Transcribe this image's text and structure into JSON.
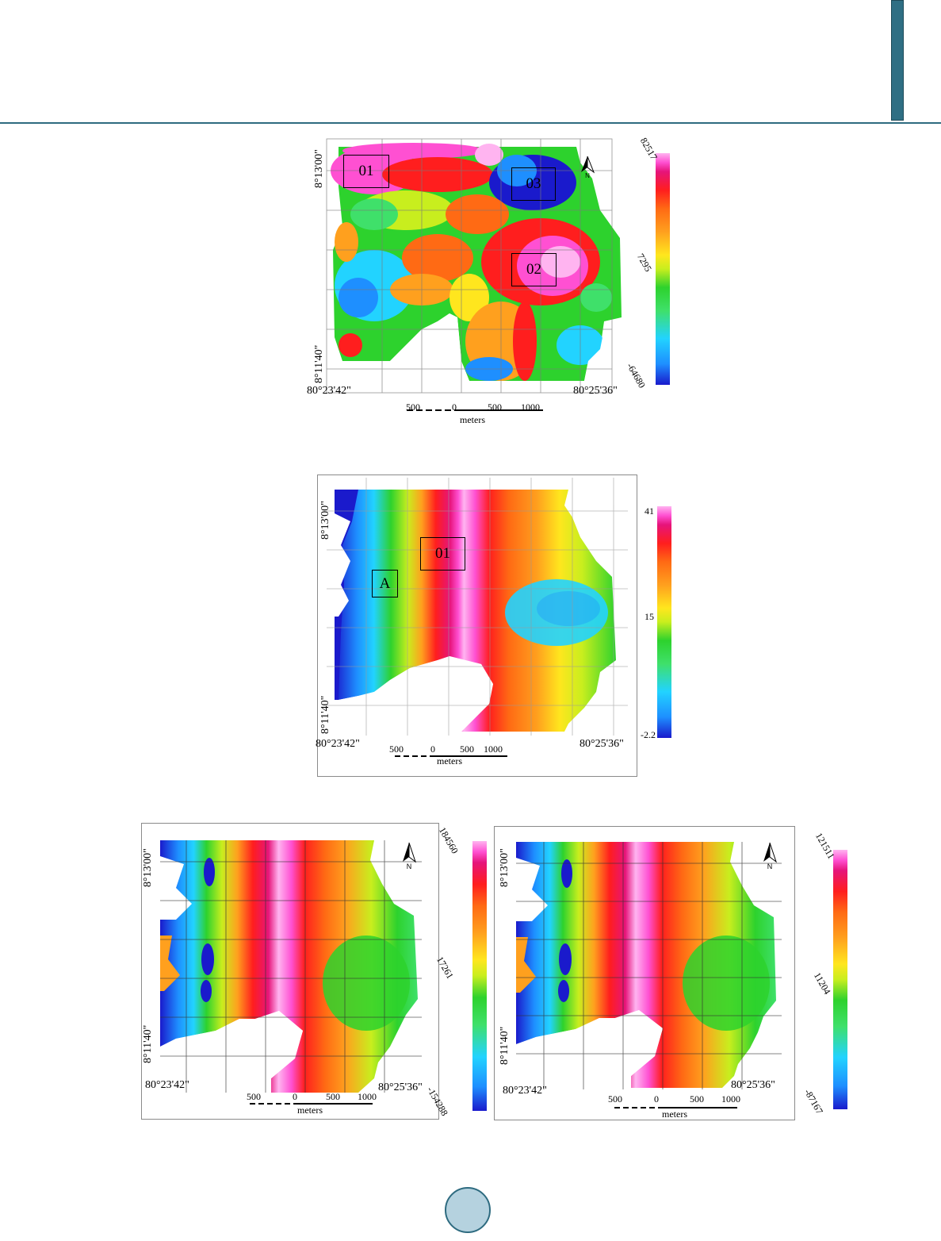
{
  "header": {
    "accent_color": "#2e6b80"
  },
  "maps": [
    {
      "id": "map1",
      "coords": {
        "lat_top": "8°13'00\"",
        "lat_bottom": "8°11'40\"",
        "lon_left": "80°23'42\"",
        "lon_right": "80°25'36\""
      },
      "scale": {
        "ticks": [
          "500",
          "0",
          "500",
          "1000"
        ],
        "unit": "meters"
      },
      "colorbar": {
        "max": "82517",
        "mid": "7295",
        "min": "-64680"
      },
      "boxes": [
        "01",
        "03",
        "02"
      ],
      "north": "N"
    },
    {
      "id": "map2",
      "coords": {
        "lat_top": "8°13'00\"",
        "lat_bottom": "8°11'40\"",
        "lon_left": "80°23'42\"",
        "lon_right": "80°25'36\""
      },
      "scale": {
        "ticks": [
          "500",
          "0",
          "500",
          "1000"
        ],
        "unit": "meters"
      },
      "colorbar": {
        "max": "41",
        "mid": "15",
        "min": "-2.2"
      },
      "boxes": [
        "01",
        "A"
      ]
    },
    {
      "id": "map3",
      "coords": {
        "lat_top": "8°13'00\"",
        "lat_bottom": "8°11'40\"",
        "lon_left": "80°23'42\"",
        "lon_right": "80°25'36\""
      },
      "scale": {
        "ticks": [
          "500",
          "0",
          "500",
          "1000"
        ],
        "unit": "meters"
      },
      "colorbar": {
        "max": "184560",
        "mid": "17261",
        "min": "-154288"
      },
      "north": "N"
    },
    {
      "id": "map4",
      "coords": {
        "lat_top": "8°13'00\"",
        "lat_bottom": "8°11'40\"",
        "lon_left": "80°23'42\"",
        "lon_right": "80°25'36\""
      },
      "scale": {
        "ticks": [
          "500",
          "0",
          "500",
          "1000"
        ],
        "unit": "meters"
      },
      "colorbar": {
        "max": "121511",
        "mid": "11204",
        "min": "-87167"
      },
      "north": "N"
    }
  ],
  "colormap": [
    "#1a1acc",
    "#1e8fff",
    "#22d3ff",
    "#3fe06a",
    "#2dd22d",
    "#c8ee1e",
    "#ffe61e",
    "#ffa01e",
    "#ff6a14",
    "#ff1e1e",
    "#e6147a",
    "#ff50d2",
    "#ffb4f0"
  ]
}
